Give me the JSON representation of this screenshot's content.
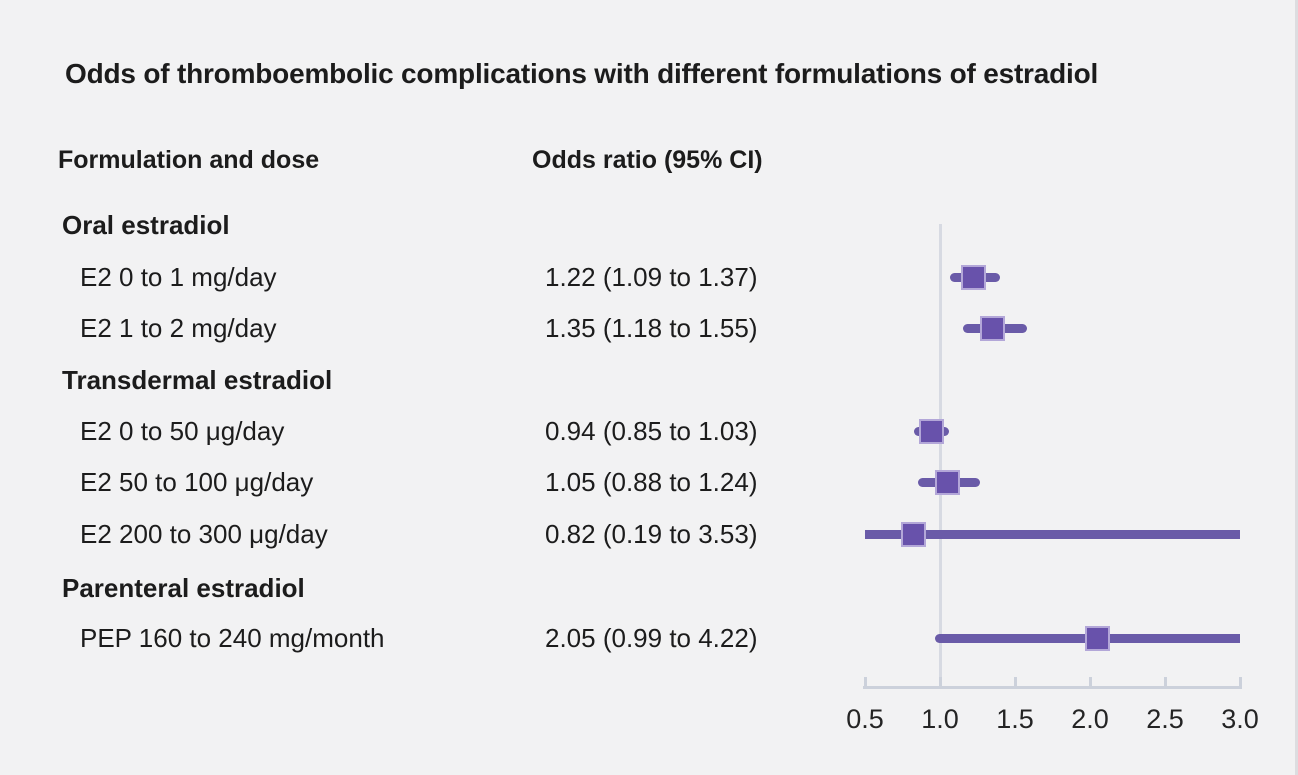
{
  "colors": {
    "background": "#f2f2f3",
    "text": "#1c1c1c",
    "ci_line": "#6a5ba8",
    "marker_fill": "#6852ab",
    "marker_ring": "#b3a7d8",
    "axis": "#ccd1db",
    "reference_line": "#d7dae2"
  },
  "chart_data": {
    "type": "scatter",
    "subtype": "forest-plot",
    "title": "Odds of thromboembolic complications with different formulations of estradiol",
    "columns": {
      "label": "Formulation and dose",
      "or": "Odds ratio (95% CI)"
    },
    "x_axis": {
      "min": 0.5,
      "max": 3.0,
      "ticks": [
        0.5,
        1.0,
        1.5,
        2.0,
        2.5,
        3.0
      ],
      "reference_line": 1.0,
      "grid": false
    },
    "rows": [
      {
        "type": "group",
        "label": "Oral estradiol"
      },
      {
        "type": "item",
        "label": "E2 0 to 1 mg/day",
        "or_text": "1.22 (1.09 to 1.37)",
        "est": 1.22,
        "lo": 1.09,
        "hi": 1.37
      },
      {
        "type": "item",
        "label": "E2 1 to 2 mg/day",
        "or_text": "1.35 (1.18 to 1.55)",
        "est": 1.35,
        "lo": 1.18,
        "hi": 1.55
      },
      {
        "type": "group",
        "label": "Transdermal estradiol"
      },
      {
        "type": "item",
        "label": "E2 0 to 50 μg/day",
        "or_text": "0.94 (0.85 to 1.03)",
        "est": 0.94,
        "lo": 0.85,
        "hi": 1.03
      },
      {
        "type": "item",
        "label": "E2 50 to 100 μg/day",
        "or_text": "1.05 (0.88 to 1.24)",
        "est": 1.05,
        "lo": 0.88,
        "hi": 1.24
      },
      {
        "type": "item",
        "label": "E2 200 to 300 μg/day",
        "or_text": "0.82 (0.19 to 3.53)",
        "est": 0.82,
        "lo": 0.19,
        "hi": 3.53
      },
      {
        "type": "group",
        "label": "Parenteral estradiol"
      },
      {
        "type": "item",
        "label": "PEP 160 to 240 mg/month",
        "or_text": "2.05 (0.99 to 4.22)",
        "est": 2.05,
        "lo": 0.99,
        "hi": 4.22
      }
    ]
  }
}
